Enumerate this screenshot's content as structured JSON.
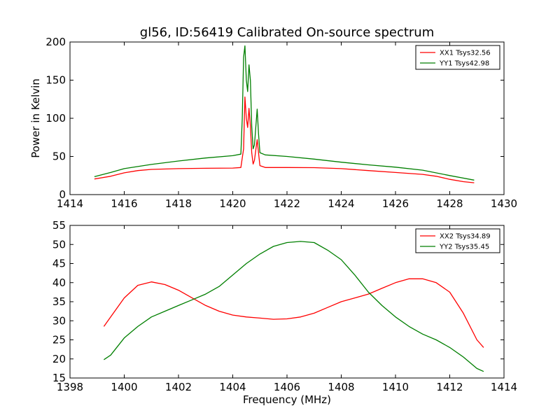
{
  "chart_data": [
    {
      "type": "line",
      "title": "gl56, ID:56419 Calibrated On-source spectrum",
      "xlabel": "",
      "ylabel": "Power in Kelvin",
      "xlim": [
        1414,
        1430
      ],
      "ylim": [
        0,
        200
      ],
      "xticks": [
        "1414",
        "1416",
        "1418",
        "1420",
        "1422",
        "1424",
        "1426",
        "1428",
        "1430"
      ],
      "yticks": [
        "0",
        "50",
        "100",
        "150",
        "200"
      ],
      "legend_position": "top-right",
      "grid": false,
      "series": [
        {
          "name": "XX1 Tsys32.56",
          "color": "#ff0000",
          "points": [
            [
              1414.9,
              20.5
            ],
            [
              1415.5,
              24
            ],
            [
              1416,
              28.5
            ],
            [
              1416.5,
              31.5
            ],
            [
              1417,
              33
            ],
            [
              1418,
              34
            ],
            [
              1419,
              34.5
            ],
            [
              1420,
              34.8
            ],
            [
              1420.3,
              35.5
            ],
            [
              1420.4,
              60
            ],
            [
              1420.45,
              128
            ],
            [
              1420.5,
              100
            ],
            [
              1420.55,
              88
            ],
            [
              1420.6,
              113
            ],
            [
              1420.65,
              90
            ],
            [
              1420.7,
              55
            ],
            [
              1420.75,
              40
            ],
            [
              1420.8,
              45
            ],
            [
              1420.9,
              72
            ],
            [
              1420.95,
              55
            ],
            [
              1421,
              38
            ],
            [
              1421.2,
              35.5
            ],
            [
              1422,
              35.5
            ],
            [
              1423,
              35.3
            ],
            [
              1424,
              34
            ],
            [
              1425,
              31.5
            ],
            [
              1426,
              29
            ],
            [
              1427,
              26.5
            ],
            [
              1427.5,
              24
            ],
            [
              1428,
              20
            ],
            [
              1428.5,
              17
            ],
            [
              1428.9,
              15.5
            ]
          ]
        },
        {
          "name": "YY1 Tsys42.98",
          "color": "#007f00",
          "points": [
            [
              1414.9,
              23.5
            ],
            [
              1415.5,
              29
            ],
            [
              1416,
              34
            ],
            [
              1417,
              39.5
            ],
            [
              1418,
              44
            ],
            [
              1419,
              48
            ],
            [
              1420,
              51
            ],
            [
              1420.3,
              53
            ],
            [
              1420.35,
              100
            ],
            [
              1420.4,
              180
            ],
            [
              1420.45,
              195
            ],
            [
              1420.5,
              150
            ],
            [
              1420.55,
              135
            ],
            [
              1420.6,
              170
            ],
            [
              1420.65,
              150
            ],
            [
              1420.7,
              90
            ],
            [
              1420.75,
              60
            ],
            [
              1420.8,
              65
            ],
            [
              1420.9,
              112
            ],
            [
              1420.95,
              80
            ],
            [
              1421,
              55
            ],
            [
              1421.2,
              52
            ],
            [
              1422,
              50
            ],
            [
              1423,
              46.5
            ],
            [
              1424,
              42.5
            ],
            [
              1425,
              39
            ],
            [
              1426,
              36
            ],
            [
              1427,
              32
            ],
            [
              1428,
              25
            ],
            [
              1428.9,
              19
            ]
          ]
        }
      ]
    },
    {
      "type": "line",
      "title": "",
      "xlabel": "Frequency (MHz)",
      "ylabel": "",
      "xlim": [
        1398,
        1414
      ],
      "ylim": [
        15,
        55
      ],
      "xticks": [
        "1398",
        "1400",
        "1402",
        "1404",
        "1406",
        "1408",
        "1410",
        "1412",
        "1414"
      ],
      "yticks": [
        "15",
        "20",
        "25",
        "30",
        "35",
        "40",
        "45",
        "50",
        "55"
      ],
      "legend_position": "top-right",
      "grid": false,
      "series": [
        {
          "name": "XX2 Tsys34.89",
          "color": "#ff0000",
          "points": [
            [
              1399.25,
              28.5
            ],
            [
              1399.5,
              31
            ],
            [
              1400,
              36
            ],
            [
              1400.5,
              39.3
            ],
            [
              1401,
              40.2
            ],
            [
              1401.5,
              39.5
            ],
            [
              1402,
              38
            ],
            [
              1402.5,
              36
            ],
            [
              1403,
              34
            ],
            [
              1403.5,
              32.5
            ],
            [
              1404,
              31.5
            ],
            [
              1404.5,
              31
            ],
            [
              1405,
              30.7
            ],
            [
              1405.5,
              30.4
            ],
            [
              1406,
              30.5
            ],
            [
              1406.5,
              31
            ],
            [
              1407,
              32
            ],
            [
              1407.5,
              33.5
            ],
            [
              1408,
              35
            ],
            [
              1408.5,
              36
            ],
            [
              1409,
              37
            ],
            [
              1409.5,
              38.5
            ],
            [
              1410,
              40
            ],
            [
              1410.5,
              41
            ],
            [
              1411,
              41
            ],
            [
              1411.5,
              40
            ],
            [
              1412,
              37.5
            ],
            [
              1412.5,
              32
            ],
            [
              1413,
              25
            ],
            [
              1413.25,
              23
            ]
          ]
        },
        {
          "name": "YY2 Tsys35.45",
          "color": "#007f00",
          "points": [
            [
              1399.25,
              19.8
            ],
            [
              1399.5,
              21
            ],
            [
              1400,
              25.5
            ],
            [
              1400.5,
              28.5
            ],
            [
              1401,
              31
            ],
            [
              1401.5,
              32.5
            ],
            [
              1402,
              34
            ],
            [
              1402.5,
              35.5
            ],
            [
              1403,
              37
            ],
            [
              1403.5,
              39
            ],
            [
              1404,
              42
            ],
            [
              1404.5,
              45
            ],
            [
              1405,
              47.5
            ],
            [
              1405.5,
              49.5
            ],
            [
              1406,
              50.5
            ],
            [
              1406.5,
              50.8
            ],
            [
              1407,
              50.5
            ],
            [
              1407.5,
              48.5
            ],
            [
              1408,
              46
            ],
            [
              1408.5,
              42
            ],
            [
              1409,
              37.5
            ],
            [
              1409.5,
              34
            ],
            [
              1410,
              31
            ],
            [
              1410.5,
              28.5
            ],
            [
              1411,
              26.5
            ],
            [
              1411.5,
              25
            ],
            [
              1412,
              23
            ],
            [
              1412.5,
              20.5
            ],
            [
              1413,
              17.5
            ],
            [
              1413.25,
              16.7
            ]
          ]
        }
      ]
    }
  ]
}
